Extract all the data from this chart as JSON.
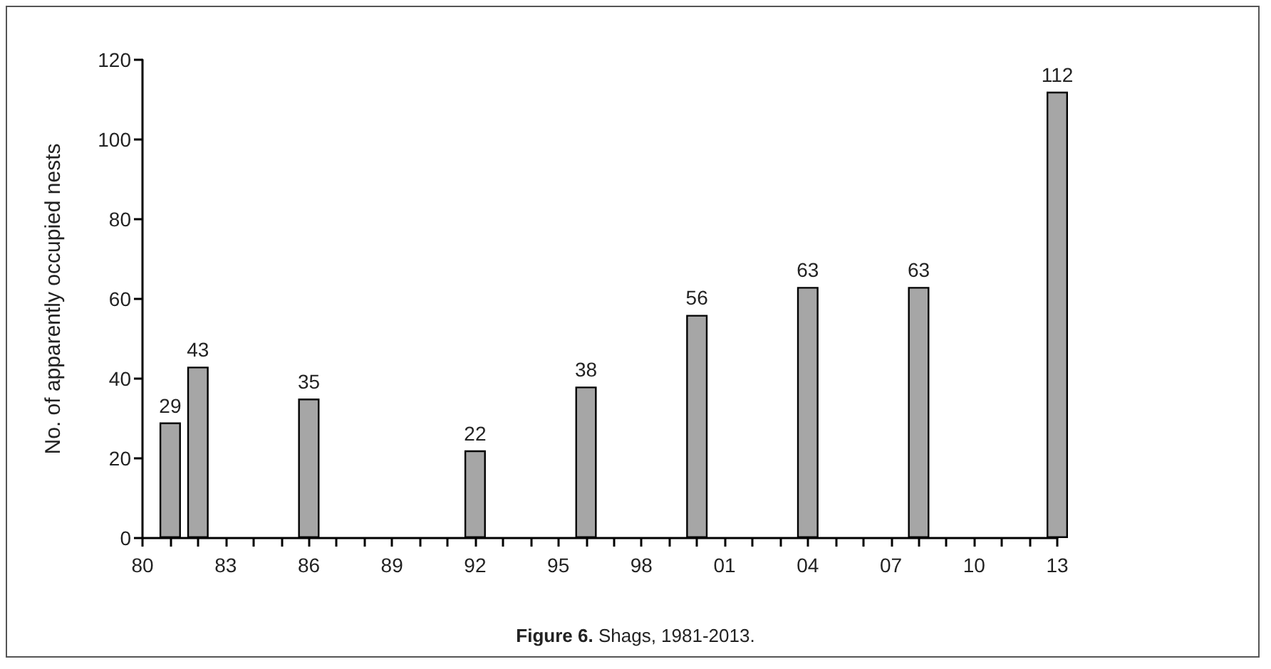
{
  "chart_data": {
    "type": "bar",
    "title": "Figure 6. Shags, 1981-2013.",
    "ylabel": "No. of apparently occupied nests",
    "x": [
      1981,
      1982,
      1986,
      1992,
      1996,
      2000,
      2004,
      2008,
      2013
    ],
    "values": [
      29,
      43,
      35,
      22,
      38,
      56,
      63,
      63,
      112
    ],
    "color": "#a6a6a6",
    "data_labels": true,
    "xlim": [
      1980,
      2013
    ],
    "xticks": [
      {
        "value": 1980,
        "label": "80"
      },
      {
        "value": 1981,
        "label": null
      },
      {
        "value": 1982,
        "label": null
      },
      {
        "value": 1983,
        "label": "83"
      },
      {
        "value": 1984,
        "label": null
      },
      {
        "value": 1985,
        "label": null
      },
      {
        "value": 1986,
        "label": "86"
      },
      {
        "value": 1987,
        "label": null
      },
      {
        "value": 1988,
        "label": null
      },
      {
        "value": 1989,
        "label": "89"
      },
      {
        "value": 1990,
        "label": null
      },
      {
        "value": 1991,
        "label": null
      },
      {
        "value": 1992,
        "label": "92"
      },
      {
        "value": 1993,
        "label": null
      },
      {
        "value": 1994,
        "label": null
      },
      {
        "value": 1995,
        "label": "95"
      },
      {
        "value": 1996,
        "label": null
      },
      {
        "value": 1997,
        "label": null
      },
      {
        "value": 1998,
        "label": "98"
      },
      {
        "value": 1999,
        "label": null
      },
      {
        "value": 2000,
        "label": null
      },
      {
        "value": 2001,
        "label": "01"
      },
      {
        "value": 2002,
        "label": null
      },
      {
        "value": 2003,
        "label": null
      },
      {
        "value": 2004,
        "label": "04"
      },
      {
        "value": 2005,
        "label": null
      },
      {
        "value": 2006,
        "label": null
      },
      {
        "value": 2007,
        "label": "07"
      },
      {
        "value": 2008,
        "label": null
      },
      {
        "value": 2009,
        "label": null
      },
      {
        "value": 2010,
        "label": "10"
      },
      {
        "value": 2011,
        "label": null
      },
      {
        "value": 2012,
        "label": null
      },
      {
        "value": 2013,
        "label": "13"
      }
    ],
    "ylim": [
      0,
      120
    ],
    "yticks": [
      0,
      20,
      40,
      60,
      80,
      100,
      120
    ],
    "grid": false
  }
}
